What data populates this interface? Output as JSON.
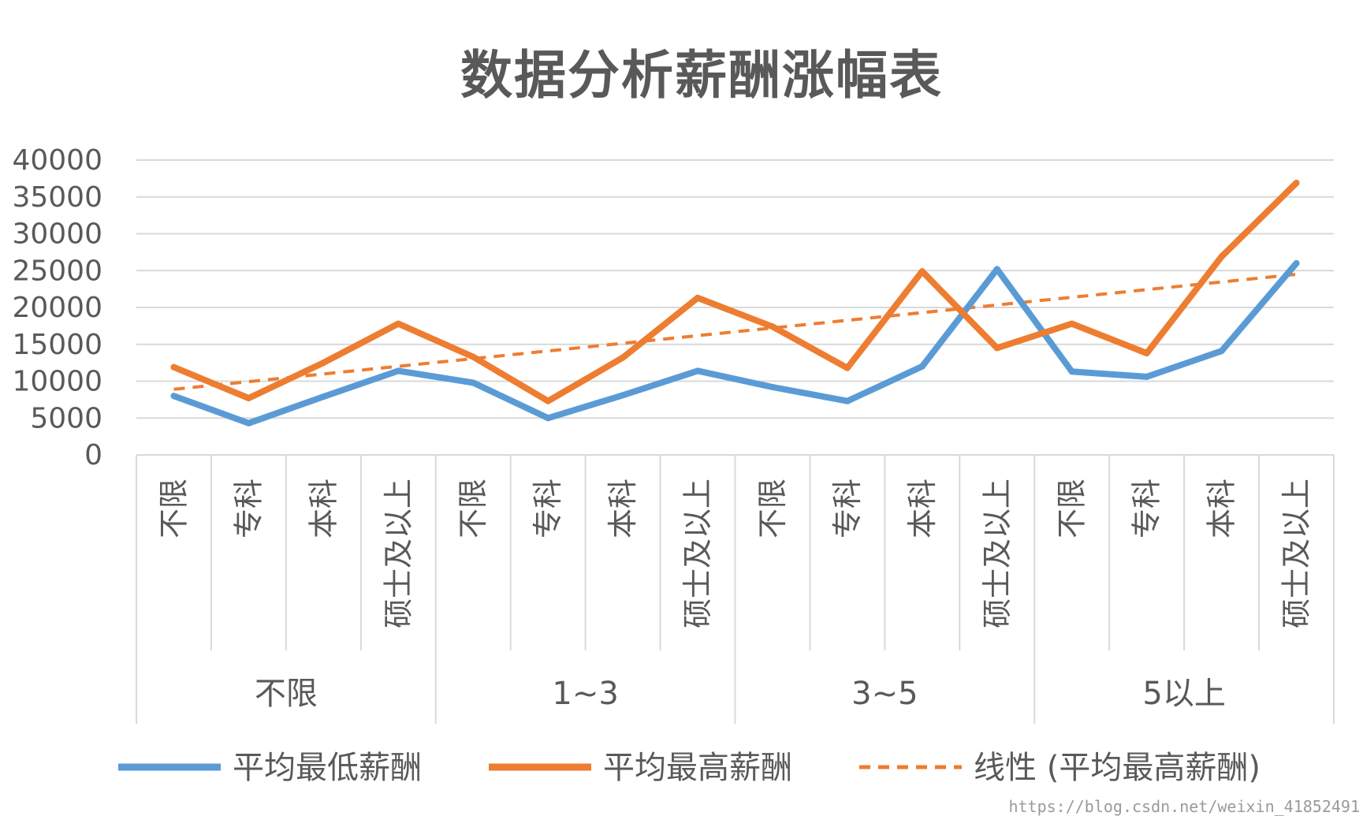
{
  "chart_data": {
    "type": "line",
    "title": "数据分析薪酬涨幅表",
    "groups": [
      "不限",
      "1~3",
      "3~5",
      "5以上"
    ],
    "categories": [
      "不限",
      "专科",
      "本科",
      "硕士及以上",
      "不限",
      "专科",
      "本科",
      "硕士及以上",
      "不限",
      "专科",
      "本科",
      "硕士及以上",
      "不限",
      "专科",
      "本科",
      "硕士及以上"
    ],
    "ylim": [
      0,
      40000
    ],
    "yticks": [
      "40000",
      "35000",
      "30000",
      "25000",
      "20000",
      "15000",
      "10000",
      "5000",
      "0"
    ],
    "grid": true,
    "legend_position": "bottom",
    "series": [
      {
        "name": "平均最低薪酬",
        "color": "#5B9BD5",
        "values": [
          8000,
          4300,
          7900,
          11400,
          9800,
          5000,
          8100,
          11400,
          9200,
          7300,
          12000,
          25200,
          11300,
          10600,
          14100,
          26000
        ]
      },
      {
        "name": "平均最高薪酬",
        "color": "#ED7D31",
        "values": [
          11900,
          7700,
          12500,
          17800,
          13300,
          7300,
          13200,
          21300,
          17400,
          11800,
          24900,
          14500,
          17800,
          13800,
          26900,
          36900
        ]
      }
    ],
    "trendline": {
      "name": "线性 (平均最高薪酬)",
      "color": "#ED7D31",
      "start": 8900,
      "end": 24500
    }
  },
  "watermark": "https://blog.csdn.net/weixin_41852491"
}
